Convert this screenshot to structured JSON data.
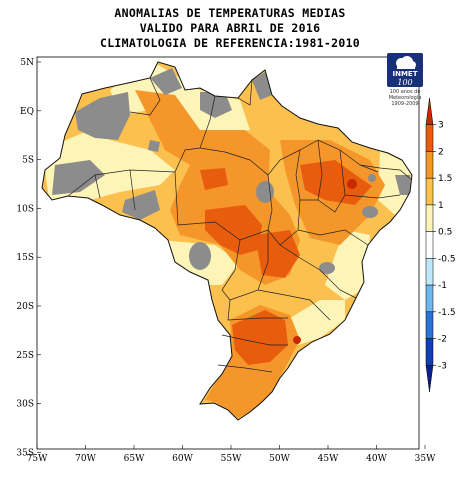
{
  "title": {
    "line1": "ANOMALIAS DE TEMPERATURAS MEDIAS",
    "line2": "VALIDO PARA ABRIL DE 2016",
    "line3": "CLIMATOLOGIA DE REFERENCIA:1981-2010"
  },
  "logo": {
    "name": "INMET",
    "number": "100",
    "caption": "100 anos de Meteorologia 1909-2009"
  },
  "axes": {
    "lat_labels": [
      "5N",
      "EQ",
      "5S",
      "10S",
      "15S",
      "20S",
      "25S",
      "30S",
      "35S"
    ],
    "lon_labels": [
      "75W",
      "70W",
      "65W",
      "60W",
      "55W",
      "50W",
      "45W",
      "40W",
      "35W"
    ]
  },
  "colorbar": {
    "labels": [
      "3",
      "2",
      "1.5",
      "1",
      "0.5",
      "-0.5",
      "-1",
      "-1.5",
      "-2",
      "-3"
    ],
    "colors": [
      "#c62a00",
      "#e85c0e",
      "#f5962a",
      "#fbc04e",
      "#fdf4b8",
      "#ffffff",
      "#bfe8fb",
      "#6cb8ef",
      "#2a73d6",
      "#0f3fb0",
      "#0a1f90"
    ],
    "no_data_color": "#8c8c8c"
  },
  "map": {
    "type": "filled-contour anomaly map",
    "region": "Brazil",
    "lon_range": [
      -75,
      -35
    ],
    "lat_range": [
      -35,
      5
    ]
  }
}
